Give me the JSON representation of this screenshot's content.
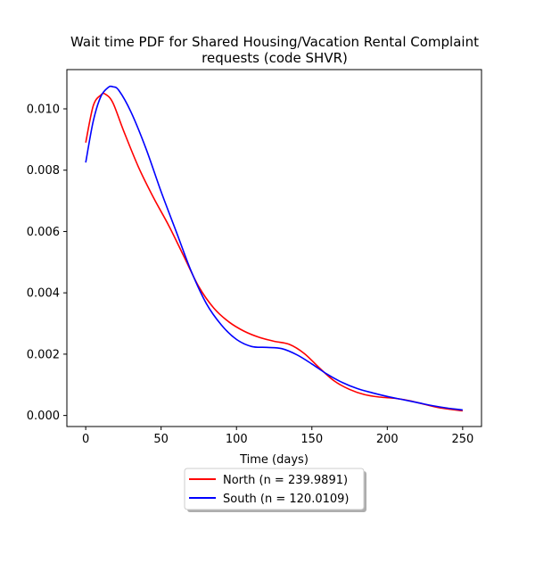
{
  "chart_data": {
    "type": "line",
    "title_line1": "Wait time PDF for Shared Housing/Vacation Rental Complaint",
    "title_line2": "requests (code SHVR)",
    "xlabel": "Time (days)",
    "ylabel": "",
    "xlim": [
      -12.5,
      262.5
    ],
    "ylim": [
      -0.00036,
      0.01128
    ],
    "x_ticks": [
      0,
      50,
      100,
      150,
      200,
      250
    ],
    "x_tick_labels": [
      "0",
      "50",
      "100",
      "150",
      "200",
      "250"
    ],
    "y_ticks": [
      0.0,
      0.002,
      0.004,
      0.006,
      0.008,
      0.01
    ],
    "y_tick_labels": [
      "0.000",
      "0.002",
      "0.004",
      "0.006",
      "0.008",
      "0.010"
    ],
    "grid": false,
    "legend_position": "below-center",
    "series": [
      {
        "name": "North (n = 239.9891)",
        "color": "#ff0000",
        "x": [
          0,
          5,
          10,
          13,
          18,
          25,
          35,
          45,
          55,
          65,
          75,
          85,
          95,
          105,
          115,
          125,
          135,
          145,
          155,
          165,
          175,
          185,
          195,
          205,
          215,
          225,
          235,
          250
        ],
        "y": [
          0.0089,
          0.0101,
          0.01045,
          0.01048,
          0.0102,
          0.0093,
          0.0081,
          0.0071,
          0.0062,
          0.0052,
          0.0042,
          0.0035,
          0.00305,
          0.00275,
          0.00255,
          0.00242,
          0.00232,
          0.00202,
          0.00155,
          0.00112,
          0.00085,
          0.00068,
          0.0006,
          0.00056,
          0.00048,
          0.00036,
          0.00025,
          0.00015
        ]
      },
      {
        "name": "South (n = 120.0109)",
        "color": "#0000ff",
        "x": [
          0,
          5,
          10,
          15,
          18,
          22,
          30,
          40,
          50,
          60,
          70,
          80,
          90,
          100,
          110,
          120,
          130,
          140,
          150,
          160,
          170,
          180,
          190,
          200,
          210,
          220,
          230,
          240,
          250
        ],
        "y": [
          0.00825,
          0.0096,
          0.0104,
          0.0107,
          0.01072,
          0.0106,
          0.0099,
          0.0087,
          0.0073,
          0.006,
          0.0047,
          0.00365,
          0.00295,
          0.00248,
          0.00225,
          0.00222,
          0.00218,
          0.00198,
          0.00168,
          0.00135,
          0.00108,
          0.00088,
          0.00074,
          0.00062,
          0.00052,
          0.00042,
          0.00032,
          0.00024,
          0.00018
        ]
      }
    ]
  }
}
